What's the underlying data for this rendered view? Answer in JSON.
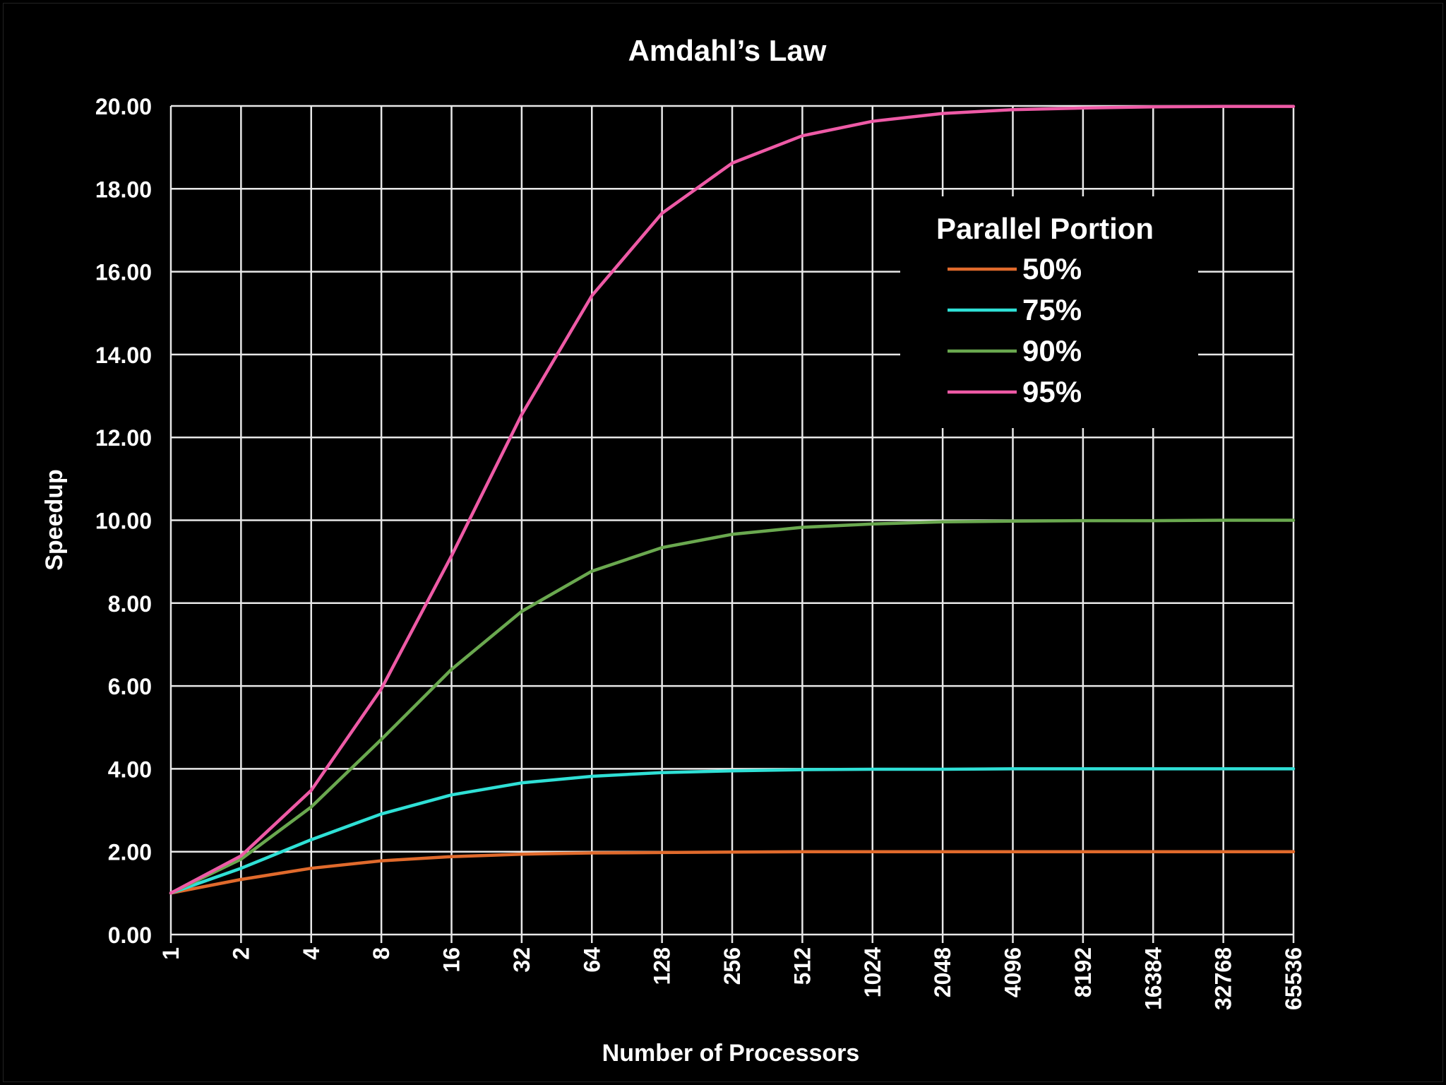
{
  "chart_data": {
    "type": "line",
    "title": "Amdahl’s Law",
    "xlabel": "Number of Processors",
    "ylabel": "Speedup",
    "x_scale": "log2",
    "categories": [
      "1",
      "2",
      "4",
      "8",
      "16",
      "32",
      "64",
      "128",
      "256",
      "512",
      "1024",
      "2048",
      "4096",
      "8192",
      "16384",
      "32768",
      "65536"
    ],
    "ylim": [
      0,
      20
    ],
    "yticks": [
      "0.00",
      "2.00",
      "4.00",
      "6.00",
      "8.00",
      "10.00",
      "12.00",
      "14.00",
      "16.00",
      "18.00",
      "20.00"
    ],
    "grid": true,
    "legend": {
      "title": "Parallel Portion",
      "position": "top-right"
    },
    "series": [
      {
        "name": "50%",
        "color": "#e06a2c",
        "values": [
          1.0,
          1.33,
          1.6,
          1.78,
          1.88,
          1.94,
          1.97,
          1.98,
          1.99,
          2.0,
          2.0,
          2.0,
          2.0,
          2.0,
          2.0,
          2.0,
          2.0
        ]
      },
      {
        "name": "75%",
        "color": "#2fe0d6",
        "values": [
          1.0,
          1.6,
          2.29,
          2.91,
          3.37,
          3.66,
          3.82,
          3.91,
          3.95,
          3.98,
          3.99,
          3.99,
          4.0,
          4.0,
          4.0,
          4.0,
          4.0
        ]
      },
      {
        "name": "90%",
        "color": "#6aa84f",
        "values": [
          1.0,
          1.82,
          3.08,
          4.71,
          6.4,
          7.8,
          8.77,
          9.34,
          9.66,
          9.83,
          9.91,
          9.96,
          9.98,
          9.99,
          9.99,
          10.0,
          10.0
        ]
      },
      {
        "name": "95%",
        "color": "#ee5aa6",
        "values": [
          1.0,
          1.9,
          3.48,
          5.93,
          9.14,
          12.55,
          15.42,
          17.41,
          18.62,
          19.28,
          19.63,
          19.82,
          19.91,
          19.95,
          19.98,
          19.99,
          19.99
        ]
      }
    ]
  }
}
